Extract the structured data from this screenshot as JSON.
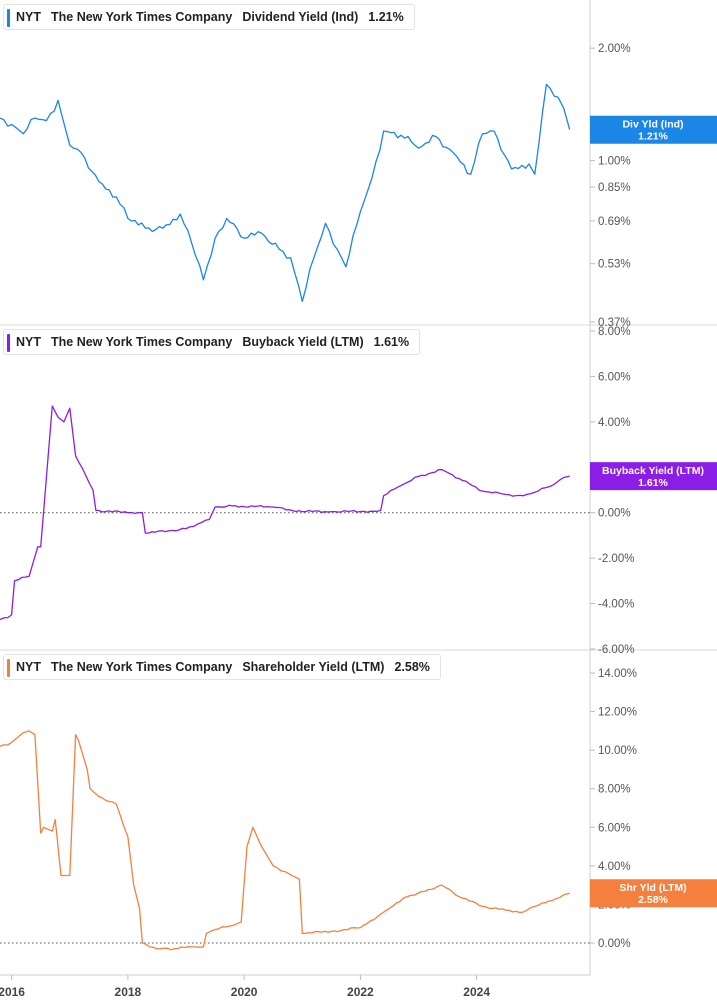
{
  "panels": [
    {
      "ticker": "NYT",
      "company": "The New York Times Company",
      "metric": "Dividend Yield (Ind)",
      "value": "1.21%",
      "color": "#1a86e6",
      "tag_label": "Div Yld (Ind)",
      "tag_value": "1.21%"
    },
    {
      "ticker": "NYT",
      "company": "The New York Times Company",
      "metric": "Buyback Yield (LTM)",
      "value": "1.61%",
      "color": "#8a1ee6",
      "tag_label": "Buyback Yield (LTM)",
      "tag_value": "1.61%"
    },
    {
      "ticker": "NYT",
      "company": "The New York Times Company",
      "metric": "Shareholder Yield (LTM)",
      "value": "2.58%",
      "color": "#f5803e",
      "tag_label": "Shr Yld (LTM)",
      "tag_value": "2.58%"
    }
  ],
  "chart_data": [
    {
      "type": "line",
      "name": "Dividend Yield (Ind)",
      "scale": "log",
      "ylim": [
        0.37,
        2.5
      ],
      "yticks": [
        0.37,
        0.53,
        0.69,
        0.85,
        1.0,
        2.0
      ],
      "ytick_labels": [
        "0.37%",
        "0.53%",
        "0.69%",
        "0.85%",
        "1.00%",
        "2.00%"
      ],
      "x": [
        2015.8,
        2016.0,
        2016.2,
        2016.4,
        2016.6,
        2016.8,
        2016.85,
        2017.0,
        2017.2,
        2017.5,
        2017.8,
        2018.0,
        2018.3,
        2018.6,
        2018.9,
        2019.1,
        2019.3,
        2019.5,
        2019.7,
        2020.0,
        2020.3,
        2020.6,
        2020.8,
        2021.0,
        2021.2,
        2021.4,
        2021.6,
        2021.75,
        2022.0,
        2022.2,
        2022.4,
        2022.7,
        2023.0,
        2023.3,
        2023.6,
        2023.9,
        2024.1,
        2024.3,
        2024.6,
        2024.9,
        2025.0,
        2025.2,
        2025.4,
        2025.5,
        2025.6
      ],
      "values": [
        1.3,
        1.25,
        1.18,
        1.3,
        1.28,
        1.45,
        1.35,
        1.1,
        1.05,
        0.88,
        0.8,
        0.7,
        0.66,
        0.66,
        0.72,
        0.6,
        0.48,
        0.62,
        0.7,
        0.62,
        0.64,
        0.58,
        0.55,
        0.42,
        0.55,
        0.68,
        0.58,
        0.52,
        0.73,
        0.9,
        1.2,
        1.17,
        1.08,
        1.16,
        1.05,
        0.92,
        1.18,
        1.2,
        0.95,
        0.98,
        0.92,
        1.6,
        1.48,
        1.38,
        1.21
      ]
    },
    {
      "type": "line",
      "name": "Buyback Yield (LTM)",
      "ylim": [
        -6,
        8
      ],
      "yticks": [
        -6,
        -4,
        -2,
        0,
        2,
        4,
        6,
        8
      ],
      "ytick_labels": [
        "-6.00%",
        "-4.00%",
        "-2.00%",
        "0.00%",
        "2.00%",
        "4.00%",
        "6.00%",
        "8.00%"
      ],
      "x": [
        2015.8,
        2016.0,
        2016.05,
        2016.3,
        2016.45,
        2016.5,
        2016.7,
        2016.8,
        2016.9,
        2017.0,
        2017.1,
        2017.4,
        2017.45,
        2018.0,
        2018.25,
        2018.3,
        2018.7,
        2019.0,
        2019.2,
        2019.4,
        2019.5,
        2019.8,
        2020.5,
        2021.0,
        2021.5,
        2022.0,
        2022.35,
        2022.4,
        2022.7,
        2023.0,
        2023.4,
        2023.7,
        2024.1,
        2024.5,
        2024.8,
        2025.0,
        2025.3,
        2025.5,
        2025.6
      ],
      "values": [
        -4.7,
        -4.5,
        -3.0,
        -2.8,
        -1.5,
        -1.5,
        4.7,
        4.2,
        4.0,
        4.6,
        2.5,
        1.0,
        0.1,
        0.0,
        0.0,
        -0.9,
        -0.8,
        -0.7,
        -0.5,
        -0.3,
        0.25,
        0.3,
        0.25,
        0.05,
        0.05,
        0.05,
        0.1,
        0.75,
        1.2,
        1.6,
        1.9,
        1.5,
        0.95,
        0.8,
        0.75,
        0.9,
        1.2,
        1.55,
        1.61
      ]
    },
    {
      "type": "line",
      "name": "Shareholder Yield (LTM)",
      "ylim": [
        -1.5,
        14.5
      ],
      "yticks": [
        0,
        2,
        4,
        6,
        8,
        10,
        12,
        14
      ],
      "ytick_labels": [
        "0.00%",
        "2.00%",
        "4.00%",
        "6.00%",
        "8.00%",
        "10.00%",
        "12.00%",
        "14.00%"
      ],
      "x": [
        2015.8,
        2016.0,
        2016.2,
        2016.3,
        2016.4,
        2016.5,
        2016.55,
        2016.7,
        2016.75,
        2016.85,
        2016.95,
        2017.0,
        2017.1,
        2017.15,
        2017.3,
        2017.35,
        2017.5,
        2017.8,
        2018.0,
        2018.1,
        2018.2,
        2018.25,
        2018.5,
        2018.8,
        2019.1,
        2019.3,
        2019.35,
        2019.5,
        2019.8,
        2019.95,
        2020.05,
        2020.15,
        2020.3,
        2020.5,
        2020.7,
        2020.95,
        2021.0,
        2021.5,
        2022.0,
        2022.35,
        2022.5,
        2022.8,
        2023.0,
        2023.4,
        2023.7,
        2024.1,
        2024.5,
        2024.8,
        2025.0,
        2025.3,
        2025.5,
        2025.6
      ],
      "values": [
        10.2,
        10.4,
        10.9,
        11.0,
        10.8,
        5.7,
        6.0,
        5.8,
        6.4,
        3.5,
        3.5,
        3.5,
        10.8,
        10.5,
        9.0,
        8.0,
        7.6,
        7.2,
        5.5,
        3.0,
        1.8,
        0.0,
        -0.3,
        -0.3,
        -0.2,
        -0.2,
        0.5,
        0.7,
        0.9,
        1.1,
        5.0,
        6.0,
        5.0,
        4.0,
        3.7,
        3.3,
        0.5,
        0.6,
        0.8,
        1.5,
        1.8,
        2.4,
        2.6,
        3.0,
        2.4,
        1.9,
        1.7,
        1.6,
        1.9,
        2.2,
        2.5,
        2.58
      ]
    }
  ],
  "x_axis": {
    "ticks": [
      2016,
      2018,
      2020,
      2022,
      2024
    ],
    "labels": [
      "2016",
      "2018",
      "2020",
      "2022",
      "2024"
    ]
  }
}
